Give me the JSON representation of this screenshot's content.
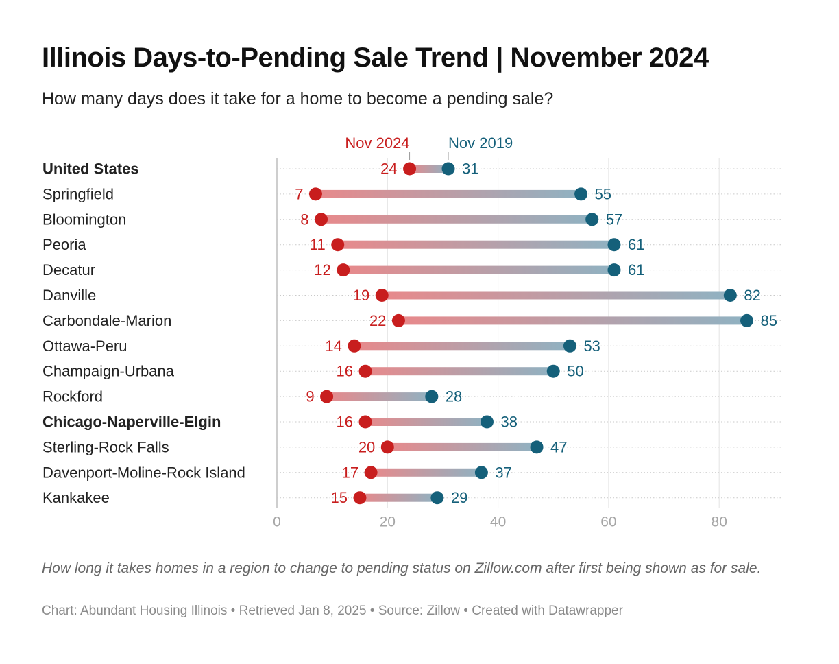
{
  "title": "Illinois Days-to-Pending Sale Trend | November 2024",
  "subtitle": "How many days does it take for a home to become a pending sale?",
  "notes": "How long it takes homes in a region to change to pending status on Zillow.com after first being shown as for sale.",
  "footer": "Chart: Abundant Housing Illinois • Retrieved Jan 8, 2025 • Source: Zillow • Created with Datawrapper",
  "colors": {
    "nov2024": "#c81e1e",
    "nov2019": "#15607a",
    "axis_text": "#a6a6a6",
    "label_text": "#222222"
  },
  "chart_data": {
    "type": "range-dot",
    "title": "Illinois Days-to-Pending Sale Trend | November 2024",
    "subtitle": "How many days does it take for a home to become a pending sale?",
    "x_ticks": [
      0,
      20,
      40,
      60,
      80
    ],
    "xlim": [
      0,
      90
    ],
    "grid": true,
    "legend": "top, above first row",
    "series": [
      {
        "name": "Nov 2024",
        "color": "#c81e1e"
      },
      {
        "name": "Nov 2019",
        "color": "#15607a"
      }
    ],
    "categories": [
      {
        "label": "United States",
        "bold": true,
        "nov2024": 24,
        "nov2019": 31
      },
      {
        "label": "Springfield",
        "bold": false,
        "nov2024": 7,
        "nov2019": 55
      },
      {
        "label": "Bloomington",
        "bold": false,
        "nov2024": 8,
        "nov2019": 57
      },
      {
        "label": "Peoria",
        "bold": false,
        "nov2024": 11,
        "nov2019": 61
      },
      {
        "label": "Decatur",
        "bold": false,
        "nov2024": 12,
        "nov2019": 61
      },
      {
        "label": "Danville",
        "bold": false,
        "nov2024": 19,
        "nov2019": 82
      },
      {
        "label": "Carbondale-Marion",
        "bold": false,
        "nov2024": 22,
        "nov2019": 85
      },
      {
        "label": "Ottawa-Peru",
        "bold": false,
        "nov2024": 14,
        "nov2019": 53
      },
      {
        "label": "Champaign-Urbana",
        "bold": false,
        "nov2024": 16,
        "nov2019": 50
      },
      {
        "label": "Rockford",
        "bold": false,
        "nov2024": 9,
        "nov2019": 28
      },
      {
        "label": "Chicago-Naperville-Elgin",
        "bold": true,
        "nov2024": 16,
        "nov2019": 38
      },
      {
        "label": "Sterling-Rock Falls",
        "bold": false,
        "nov2024": 20,
        "nov2019": 47
      },
      {
        "label": "Davenport-Moline-Rock Island",
        "bold": false,
        "nov2024": 17,
        "nov2019": 37
      },
      {
        "label": "Kankakee",
        "bold": false,
        "nov2024": 15,
        "nov2019": 29
      }
    ]
  }
}
